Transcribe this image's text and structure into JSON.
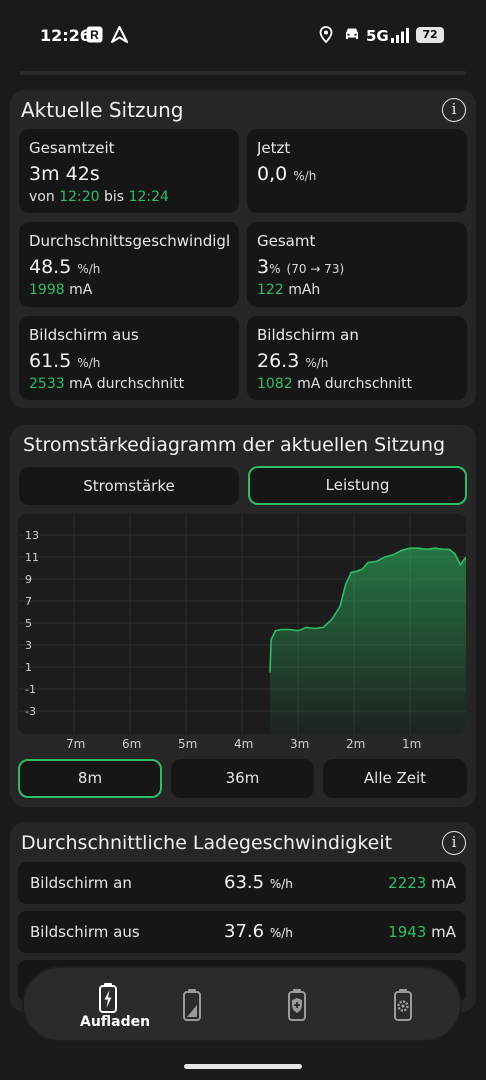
{
  "status_bar": {
    "time": "12:26",
    "network": "5G",
    "battery": "72"
  },
  "session": {
    "title": "Aktuelle Sitzung",
    "tiles": {
      "total_time": {
        "label": "Gesamtzeit",
        "value": "3m 42s",
        "from_word": "von",
        "from": "12:20",
        "to_word": "bis",
        "to": "12:24"
      },
      "now": {
        "label": "Jetzt",
        "value": "0,0",
        "unit": "%/h"
      },
      "avg_speed": {
        "label": "Durchschnittsgeschwindigk..",
        "value": "48.5",
        "unit": "%/h",
        "ma": "1998",
        "ma_unit": "mA"
      },
      "total": {
        "label": "Gesamt",
        "value": "3",
        "unit": "%",
        "range": "(70 → 73)",
        "mah": "122",
        "mah_unit": "mAh"
      },
      "screen_off": {
        "label": "Bildschirm aus",
        "value": "61.5",
        "unit": "%/h",
        "ma": "2533",
        "ma_unit": "mA durchschnitt"
      },
      "screen_on": {
        "label": "Bildschirm an",
        "value": "26.3",
        "unit": "%/h",
        "ma": "1082",
        "ma_unit": "mA durchschnitt"
      }
    }
  },
  "current_chart": {
    "title": "Stromstärkediagramm der aktuellen Sitzung",
    "tabs": [
      "Stromstärke",
      "Leistung"
    ],
    "active_tab": 1,
    "ranges": [
      "8m",
      "36m",
      "Alle Zeit"
    ],
    "active_range": 0
  },
  "chart_data": {
    "type": "area",
    "title": "",
    "xlabel": "",
    "ylabel": "",
    "y_ticks": [
      "13",
      "11",
      "9",
      "7",
      "5",
      "3",
      "1",
      "-1",
      "-3"
    ],
    "x_ticks": [
      "7m",
      "6m",
      "5m",
      "4m",
      "3m",
      "2m",
      "1m"
    ],
    "ylim": [
      -4,
      14
    ],
    "xlim": [
      8,
      0
    ],
    "grid": true,
    "color": "#2dbd66",
    "series": [
      {
        "x": [
          3.5,
          3.48,
          3.4,
          3.3,
          3.15,
          3.0,
          2.85,
          2.7,
          2.55,
          2.4,
          2.25,
          2.15,
          2.05,
          1.95,
          1.85,
          1.75,
          1.6,
          1.45,
          1.3,
          1.15,
          1.0,
          0.85,
          0.7,
          0.55,
          0.4,
          0.3,
          0.2,
          0.1,
          0.0
        ],
        "y": [
          0.5,
          3.5,
          4.3,
          4.4,
          4.4,
          4.3,
          4.6,
          4.5,
          4.6,
          5.3,
          6.5,
          8.5,
          9.6,
          9.7,
          9.9,
          10.5,
          10.6,
          11.0,
          11.2,
          11.6,
          11.8,
          11.8,
          11.7,
          11.8,
          11.7,
          11.7,
          11.3,
          10.3,
          11.0
        ]
      }
    ]
  },
  "avg_charge": {
    "title": "Durchschnittliche Ladegeschwindigkeit",
    "rows": [
      {
        "label": "Bildschirm an",
        "value": "63.5",
        "unit": "%/h",
        "ma": "2223",
        "ma_unit": "mA"
      },
      {
        "label": "Bildschirm aus",
        "value": "37.6",
        "unit": "%/h",
        "ma": "1943",
        "ma_unit": "mA"
      }
    ]
  },
  "nav": {
    "items": [
      {
        "label": "Aufladen",
        "icon": "battery-charging-icon"
      },
      {
        "icon": "battery-level-icon"
      },
      {
        "icon": "battery-shield-icon"
      },
      {
        "icon": "battery-settings-icon"
      }
    ]
  }
}
